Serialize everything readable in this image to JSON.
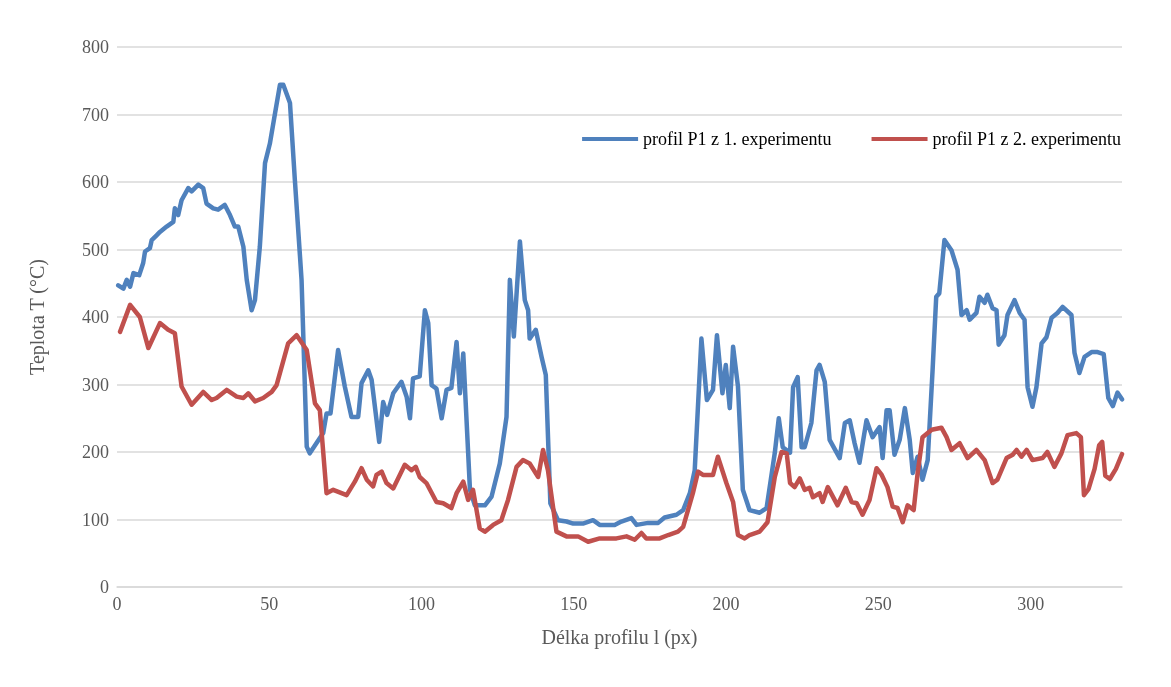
{
  "chart_data": {
    "type": "line",
    "xlabel": "Délka profilu l (px)",
    "ylabel": "Teplota T (°C)",
    "xlim": [
      0,
      330
    ],
    "xticks": [
      0,
      50,
      100,
      150,
      200,
      250,
      300
    ],
    "ylim": [
      0,
      800
    ],
    "yticks": [
      0,
      100,
      200,
      300,
      400,
      500,
      600,
      700,
      800
    ],
    "grid": "y",
    "legend": "top right",
    "marker": "none",
    "line_style": "solid",
    "series": [
      {
        "name": "profil P1 z 1. experimentu",
        "color": "#4f81bd",
        "x": [
          0.4,
          2.1,
          3.2,
          4.3,
          5.4,
          7.3,
          8.6,
          9.2,
          10.8,
          11.4,
          13,
          14.1,
          16.3,
          18.5,
          19,
          20.1,
          21.2,
          23.4,
          24.5,
          26.7,
          28.3,
          29.4,
          31.6,
          33.2,
          35.4,
          37.1,
          38.7,
          39.8,
          41.5,
          42.6,
          44.2,
          45.3,
          46.9,
          48.6,
          50.2,
          51.9,
          53.5,
          54.6,
          56.8,
          58.4,
          60.1,
          60.6,
          62.3,
          63.3,
          67.7,
          68.8,
          70.1,
          72.6,
          74.8,
          77,
          79.2,
          80.3,
          82.5,
          83.6,
          86.1,
          87.4,
          88.7,
          90.7,
          93.4,
          95.1,
          96.2,
          97.2,
          99.4,
          101.1,
          102.2,
          103.3,
          104.9,
          106.6,
          108.2,
          109.8,
          111.5,
          112.6,
          113.7,
          115.9,
          117.5,
          120.8,
          123,
          125.7,
          127.9,
          129,
          130.3,
          132.3,
          133.9,
          135,
          135.5,
          137.5,
          139.4,
          140.8,
          142.3,
          144.8,
          147.6,
          149.8,
          153,
          156.3,
          158.5,
          163.4,
          165.6,
          168.9,
          170.6,
          174.4,
          177.7,
          179.8,
          183.7,
          185.9,
          188.1,
          189.7,
          191.9,
          193.7,
          195.7,
          197,
          198.8,
          199.9,
          201.2,
          202.3,
          203.9,
          205.5,
          207.7,
          211,
          213.3,
          216,
          217.3,
          218.6,
          221,
          222,
          223.5,
          224.8,
          225.8,
          228,
          229.7,
          230.7,
          232.4,
          234,
          237.3,
          239,
          240.6,
          242.2,
          243.8,
          246.1,
          248.1,
          250.4,
          251.4,
          252.7,
          253.7,
          255.3,
          257,
          258.7,
          260.3,
          261.3,
          262.9,
          264.5,
          266.2,
          267.8,
          269,
          270,
          271.7,
          274,
          276,
          277.3,
          279,
          280,
          282.2,
          283.2,
          284.9,
          285.8,
          287.5,
          288.8,
          289.5,
          291.4,
          292.4,
          294.7,
          296.4,
          298,
          299,
          300.6,
          301.9,
          303.6,
          305.2,
          306.9,
          308.8,
          310.5,
          313.4,
          314.4,
          316,
          317.7,
          320,
          322,
          324,
          325.5,
          327,
          328.5,
          330
        ],
        "values": [
          447,
          442,
          455,
          445,
          465,
          462,
          480,
          497,
          502,
          514,
          521,
          526,
          534,
          541,
          561,
          551,
          573,
          591,
          586,
          596,
          591,
          568,
          561,
          559,
          566,
          551,
          534,
          534,
          504,
          455,
          410,
          425,
          504,
          628,
          657,
          702,
          744,
          744,
          717,
          603,
          489,
          455,
          208,
          198,
          228,
          257,
          257,
          351,
          297,
          252,
          252,
          302,
          321,
          307,
          215,
          274,
          255,
          287,
          304,
          282,
          250,
          309,
          312,
          410,
          391,
          299,
          294,
          250,
          292,
          295,
          363,
          287,
          346,
          144,
          121,
          121,
          134,
          183,
          252,
          455,
          371,
          512,
          425,
          410,
          368,
          381,
          341,
          314,
          124,
          99,
          97,
          94,
          94,
          99,
          92,
          92,
          97,
          102,
          92,
          95,
          95,
          103,
          107,
          114,
          139,
          173,
          368,
          277,
          292,
          373,
          287,
          329,
          265,
          356,
          297,
          144,
          114,
          110,
          117,
          199,
          250,
          207,
          199,
          296,
          311,
          207,
          207,
          243,
          321,
          329,
          304,
          218,
          191,
          243,
          247,
          213,
          184,
          247,
          222,
          237,
          191,
          262,
          262,
          196,
          218,
          265,
          218,
          169,
          193,
          159,
          188,
          321,
          430,
          435,
          514,
          499,
          470,
          403,
          410,
          396,
          406,
          430,
          421,
          433,
          413,
          410,
          359,
          373,
          403,
          425,
          406,
          396,
          296,
          267,
          296,
          361,
          370,
          399,
          406,
          415,
          403,
          347,
          317,
          341,
          348,
          348,
          345,
          280,
          268,
          288,
          278
        ]
      },
      {
        "name": "profil P1 z 2. experimentu",
        "color": "#c0504d",
        "x": [
          1,
          4.3,
          7.5,
          10.3,
          14.1,
          16.8,
          19,
          21.2,
          24.5,
          28.3,
          31.1,
          32.7,
          36,
          39.3,
          41.5,
          43.1,
          45.3,
          48,
          50.8,
          52.4,
          56.2,
          59,
          62.3,
          65,
          66.6,
          68.8,
          71,
          75.4,
          78.1,
          80.3,
          82,
          84.1,
          85.2,
          86.9,
          88.5,
          90.7,
          94.5,
          96.7,
          98.1,
          99.4,
          101.6,
          104.9,
          107.1,
          109.8,
          111.5,
          113.7,
          115.3,
          116.9,
          119.1,
          120.8,
          123.5,
          126.2,
          128.4,
          131.2,
          133.3,
          135.5,
          138.3,
          139.9,
          141.5,
          144.3,
          147.6,
          151.4,
          154.7,
          158.5,
          164,
          167.3,
          170,
          172.2,
          173.8,
          178.2,
          181,
          184.2,
          185.9,
          189.1,
          190.8,
          192.4,
          195.7,
          197.3,
          200.1,
          202.3,
          203.9,
          206.1,
          207.7,
          211,
          213.6,
          216,
          218.2,
          219.9,
          221,
          222.5,
          224.2,
          225.8,
          227.4,
          228.5,
          230.7,
          231.7,
          233.4,
          236.6,
          239.3,
          241.2,
          242.9,
          244.8,
          247.1,
          249.4,
          251.1,
          253,
          254.7,
          256.3,
          258,
          259.6,
          261.6,
          262.9,
          264.5,
          267.5,
          270.7,
          272.4,
          274,
          276.7,
          279.3,
          282.2,
          284.9,
          287.5,
          289.1,
          292.1,
          294.1,
          295.4,
          297,
          298.7,
          300.6,
          303.9,
          305.5,
          307.8,
          310.1,
          312.1,
          315,
          316.5,
          317.5,
          319,
          321,
          322.5,
          323.5,
          324.5,
          326,
          328,
          330
        ],
        "values": [
          378,
          418,
          400,
          354,
          391,
          381,
          376,
          297,
          270,
          289,
          277,
          280,
          292,
          282,
          280,
          287,
          275,
          280,
          289,
          299,
          361,
          373,
          351,
          272,
          262,
          139,
          144,
          136,
          156,
          176,
          159,
          149,
          166,
          171,
          154,
          146,
          181,
          173,
          178,
          163,
          154,
          126,
          124,
          117,
          139,
          156,
          129,
          144,
          87,
          82,
          92,
          99,
          129,
          178,
          188,
          183,
          163,
          203,
          173,
          82,
          75,
          75,
          67,
          72,
          72,
          75,
          70,
          80,
          72,
          72,
          77,
          82,
          89,
          139,
          171,
          166,
          166,
          193,
          154,
          126,
          77,
          72,
          77,
          82,
          96,
          163,
          200,
          198,
          154,
          148,
          161,
          144,
          147,
          133,
          139,
          126,
          148,
          121,
          147,
          126,
          124,
          107,
          129,
          176,
          166,
          148,
          119,
          117,
          96,
          121,
          114,
          169,
          222,
          233,
          236,
          222,
          203,
          213,
          191,
          203,
          188,
          154,
          159,
          191,
          196,
          203,
          193,
          203,
          188,
          191,
          200,
          178,
          198,
          225,
          228,
          222,
          136,
          145,
          175,
          210,
          215,
          165,
          160,
          175,
          197
        ]
      }
    ]
  }
}
